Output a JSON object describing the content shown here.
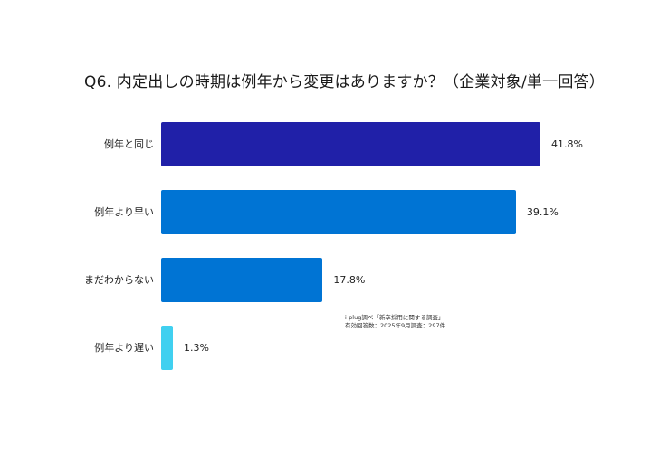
{
  "title": "Q6. 内定出しの時期は例年から変更はありますか？（企業対象/単一回答）",
  "note": {
    "line1": "i-plug調べ「新卒採用に関する調査」",
    "line2": "有効回答数：2025年9月調査：297件"
  },
  "bars": [
    {
      "label": "例年と同じ",
      "value": 41.8,
      "value_label": "41.8%",
      "color": "#2020A8"
    },
    {
      "label": "例年より早い",
      "value": 39.1,
      "value_label": "39.1%",
      "color": "#0074D4"
    },
    {
      "label": "まだわからない",
      "value": 17.8,
      "value_label": "17.8%",
      "color": "#0074D4"
    },
    {
      "label": "例年より遅い",
      "value": 1.3,
      "value_label": "1.3%",
      "color": "#40D0F0"
    }
  ],
  "chart_data": {
    "type": "bar",
    "orientation": "horizontal",
    "title": "Q6. 内定出しの時期は例年から変更はありますか？（企業対象/単一回答）",
    "categories": [
      "例年と同じ",
      "例年より早い",
      "まだわからない",
      "例年より遅い"
    ],
    "values": [
      41.8,
      39.1,
      17.8,
      1.3
    ],
    "unit": "%",
    "xlabel": "",
    "ylabel": "",
    "grid": false,
    "legend": null,
    "annotations": [
      "i-plug調べ「新卒採用に関する調査」",
      "有効回答数：2025年9月調査：297件"
    ]
  }
}
